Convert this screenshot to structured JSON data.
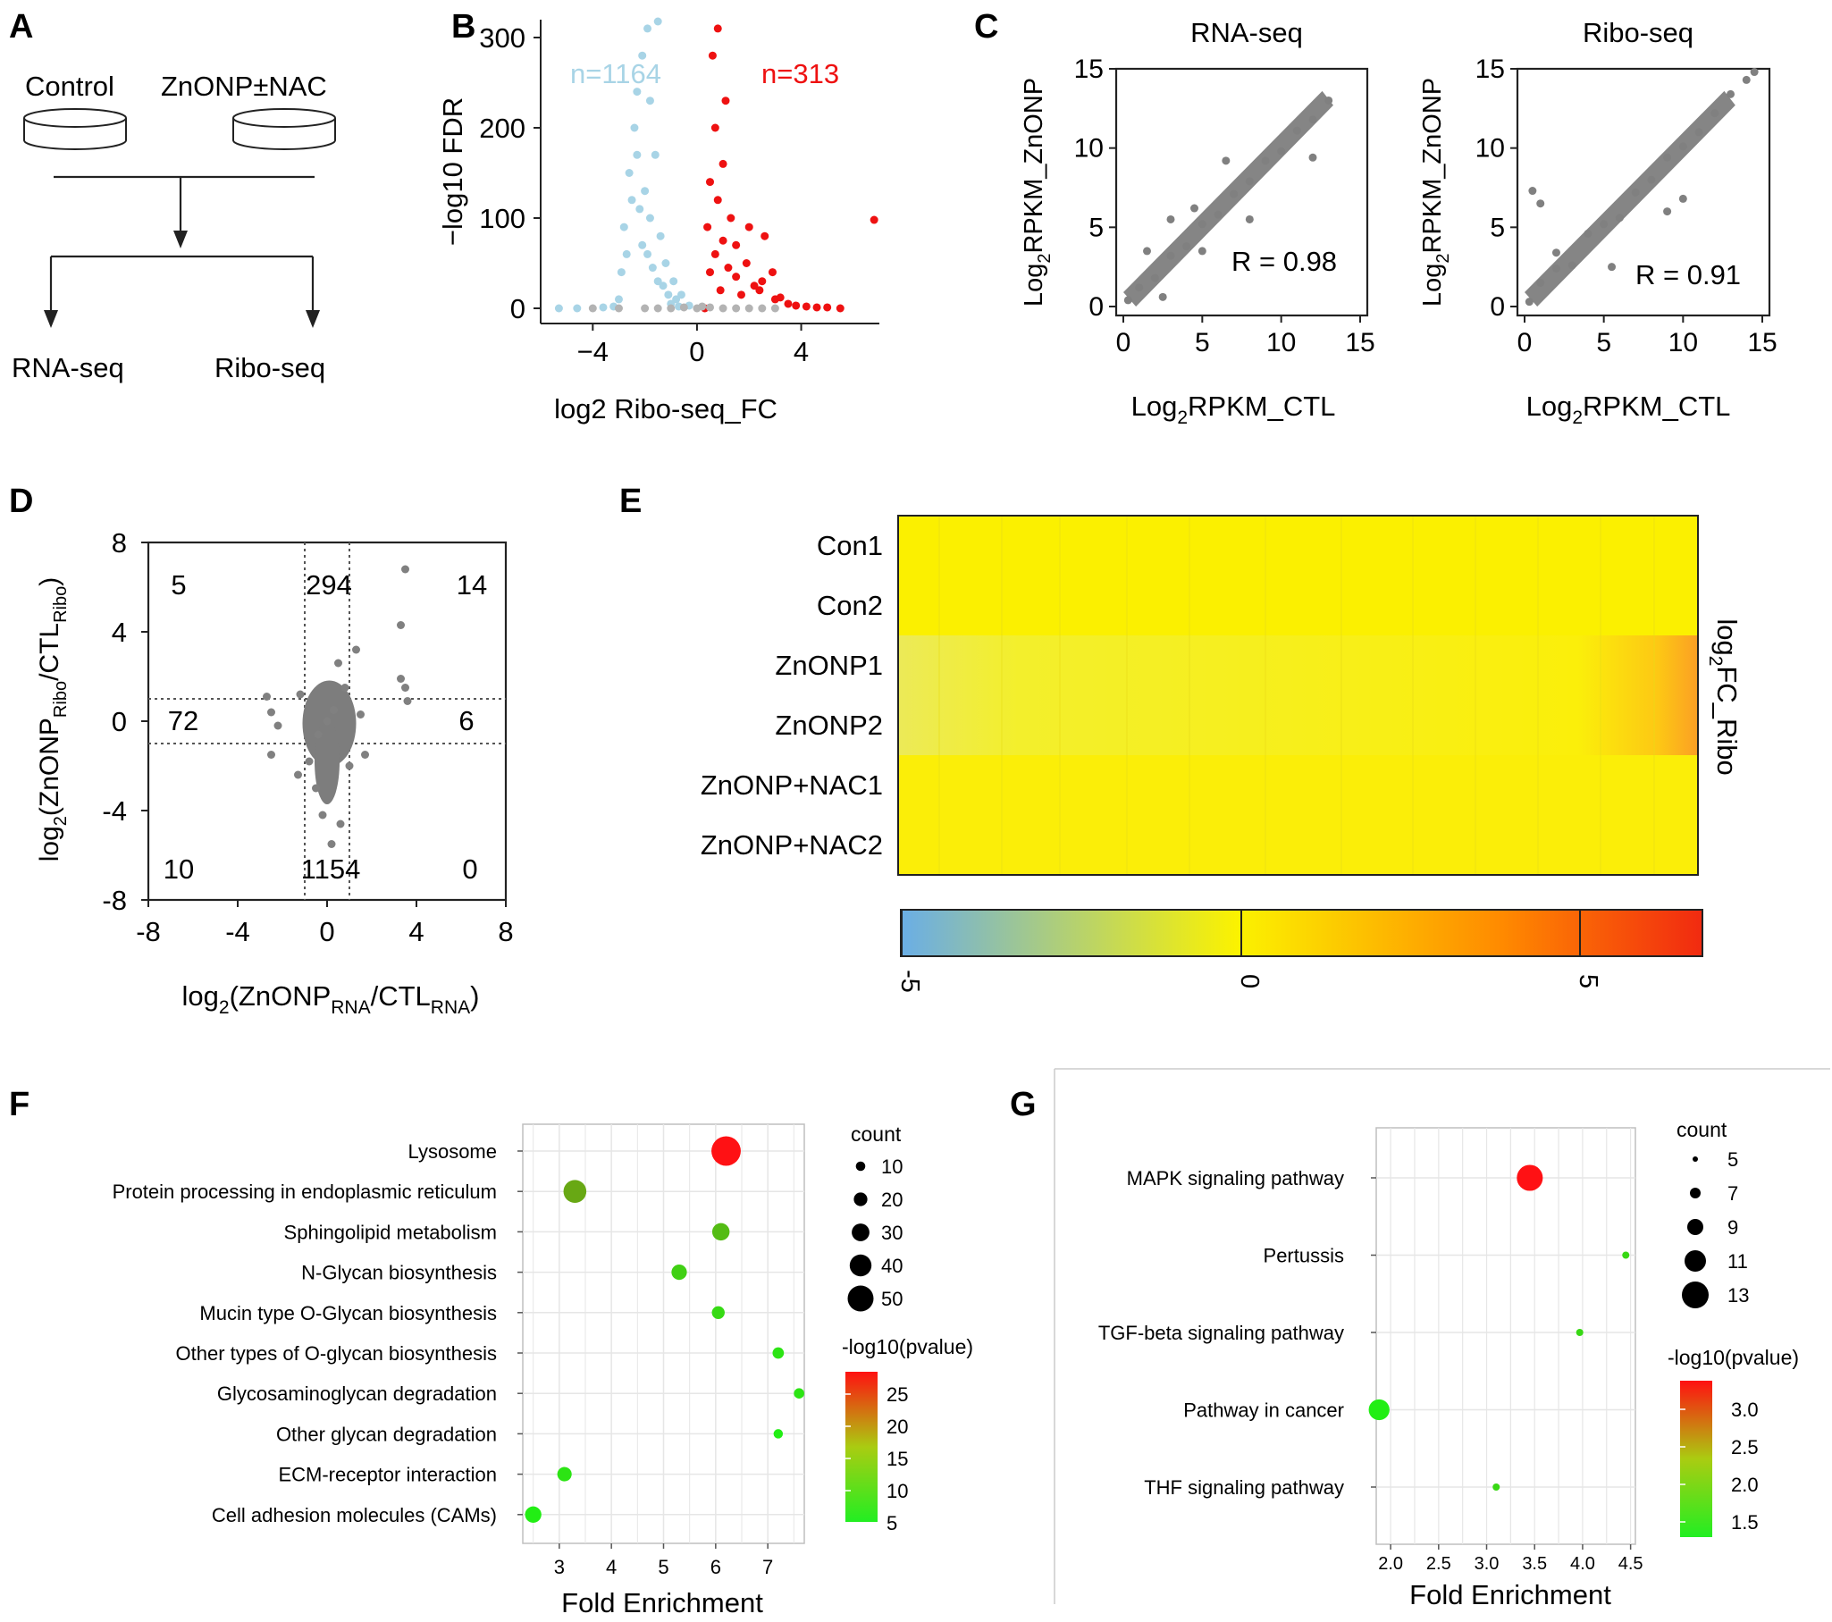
{
  "panels": {
    "A": {
      "letter": "A",
      "control": "Control",
      "treatment": "ZnONP±NAC",
      "rna_seq": "RNA-seq",
      "ribo_seq": "Ribo-seq"
    },
    "B": {
      "letter": "B",
      "xlabel": "log2 Ribo-seq_FC",
      "ylabel": "−log10 FDR",
      "n_down": "n=1164",
      "n_up": "n=313",
      "xticks": [
        "−4",
        "0",
        "4"
      ],
      "yticks": [
        "0",
        "100",
        "200",
        "300"
      ]
    },
    "C": {
      "letter": "C",
      "rna_title": "RNA-seq",
      "ribo_title": "Ribo-seq",
      "ylabel_main": "Log",
      "ylabel_sub": "2",
      "ylabel_rest": "RPKM_ZnONP",
      "xlabel_main": "Log",
      "xlabel_sub": "2",
      "xlabel_rest": "RPKM_CTL",
      "rna_r": "R = 0.98",
      "ribo_r": "R = 0.91",
      "ticks": [
        "0",
        "5",
        "10",
        "15"
      ]
    },
    "D": {
      "letter": "D",
      "xlabel": {
        "a": "log",
        "b": "2",
        "c": "(ZnONP",
        "d": "RNA",
        "e": "/CTL",
        "f": "RNA",
        "g": ")"
      },
      "ylabel": {
        "a": "log",
        "b": "2",
        "c": "(ZnONP",
        "d": "Ribo",
        "e": "/CTL",
        "f": "Ribo",
        "g": ")"
      },
      "counts": [
        "5",
        "294",
        "14",
        "72",
        "6",
        "10",
        "1154",
        "0"
      ],
      "xticks": [
        "-8",
        "-4",
        "0",
        "4",
        "8"
      ],
      "yticks": [
        "8",
        "4",
        "0",
        "-4",
        "-8"
      ]
    },
    "E": {
      "letter": "E",
      "rows": [
        "Con1",
        "Con2",
        "ZnONP1",
        "ZnONP2",
        "ZnONP+NAC1",
        "ZnONP+NAC2"
      ],
      "side_label_a": "log",
      "side_label_b": "2",
      "side_label_c": "FC_Ribo",
      "colorbar_ticks": [
        "-5",
        "0",
        "5"
      ]
    },
    "F": {
      "letter": "F",
      "xlabel": "Fold Enrichment",
      "count_title": "count",
      "pvalue_title": "-log10(pvalue)",
      "count_legend": [
        "10",
        "20",
        "30",
        "40",
        "50"
      ],
      "pvalue_legend": [
        "25",
        "20",
        "15",
        "10",
        "5"
      ],
      "xticks": [
        "3",
        "4",
        "5",
        "6",
        "7"
      ]
    },
    "G": {
      "letter": "G",
      "xlabel": "Fold Enrichment",
      "count_title": "count",
      "pvalue_title": "-log10(pvalue)",
      "count_legend": [
        "5",
        "7",
        "9",
        "11",
        "13"
      ],
      "pvalue_legend": [
        "3.0",
        "2.5",
        "2.0",
        "1.5"
      ],
      "xticks": [
        "2.0",
        "2.5",
        "3.0",
        "3.5",
        "4.0",
        "4.5"
      ]
    }
  },
  "chart_data": [
    {
      "panel": "B",
      "type": "scatter",
      "xlabel": "log2 Ribo-seq_FC",
      "ylabel": "−log10 FDR",
      "xlim": [
        -6,
        7
      ],
      "ylim": [
        0,
        320
      ],
      "series": [
        {
          "name": "n=1164",
          "color": "#a8d4e6",
          "points": [
            [
              -5.3,
              0
            ],
            [
              -4.6,
              0
            ],
            [
              -3.6,
              1
            ],
            [
              -3.2,
              2
            ],
            [
              -3,
              10
            ],
            [
              -2.9,
              40
            ],
            [
              -2.8,
              90
            ],
            [
              -2.7,
              60
            ],
            [
              -2.6,
              150
            ],
            [
              -2.5,
              120
            ],
            [
              -2.4,
              200
            ],
            [
              -2.3,
              240
            ],
            [
              -2.3,
              170
            ],
            [
              -2.2,
              110
            ],
            [
              -2.1,
              280
            ],
            [
              -2.1,
              70
            ],
            [
              -2,
              130
            ],
            [
              -1.9,
              60
            ],
            [
              -1.9,
              310
            ],
            [
              -1.8,
              100
            ],
            [
              -1.8,
              230
            ],
            [
              -1.7,
              45
            ],
            [
              -1.6,
              170
            ],
            [
              -1.5,
              30
            ],
            [
              -1.5,
              320
            ],
            [
              -1.4,
              80
            ],
            [
              -1.3,
              25
            ],
            [
              -1.2,
              50
            ],
            [
              -1.1,
              15
            ],
            [
              -1,
              5
            ],
            [
              -0.9,
              30
            ],
            [
              -0.8,
              10
            ],
            [
              -0.7,
              2
            ],
            [
              -0.6,
              15
            ],
            [
              -0.3,
              3
            ]
          ]
        },
        {
          "name": "n=313",
          "color": "#ee1111",
          "points": [
            [
              0.3,
              0
            ],
            [
              0.4,
              90
            ],
            [
              0.5,
              140
            ],
            [
              0.5,
              40
            ],
            [
              0.6,
              280
            ],
            [
              0.7,
              200
            ],
            [
              0.7,
              60
            ],
            [
              0.8,
              310
            ],
            [
              0.8,
              120
            ],
            [
              0.9,
              20
            ],
            [
              1,
              160
            ],
            [
              1,
              75
            ],
            [
              1.1,
              230
            ],
            [
              1.2,
              45
            ],
            [
              1.3,
              100
            ],
            [
              1.5,
              35
            ],
            [
              1.5,
              70
            ],
            [
              1.7,
              15
            ],
            [
              1.9,
              50
            ],
            [
              2,
              90
            ],
            [
              2.2,
              25
            ],
            [
              2.4,
              20
            ],
            [
              2.5,
              30
            ],
            [
              2.6,
              80
            ],
            [
              2.9,
              40
            ],
            [
              3,
              10
            ],
            [
              3.2,
              12
            ],
            [
              3.5,
              5
            ],
            [
              3.8,
              3
            ],
            [
              4.2,
              2
            ],
            [
              4.6,
              1
            ],
            [
              5,
              1
            ],
            [
              5.5,
              0
            ],
            [
              6.8,
              98
            ]
          ]
        },
        {
          "name": "",
          "color": "#b3b3b3",
          "points": [
            [
              -4,
              0
            ],
            [
              -3,
              0
            ],
            [
              -2,
              0
            ],
            [
              -1,
              0
            ],
            [
              0,
              0
            ],
            [
              1,
              0
            ],
            [
              2,
              0
            ],
            [
              3,
              0
            ],
            [
              -0.5,
              1
            ],
            [
              0.5,
              1
            ],
            [
              1.5,
              0
            ],
            [
              -1.5,
              0
            ],
            [
              2.5,
              0
            ],
            [
              0.2,
              2
            ]
          ]
        }
      ]
    },
    {
      "panel": "C-left",
      "type": "scatter",
      "title": "RNA-seq",
      "xlim": [
        0,
        15
      ],
      "ylim": [
        0,
        15
      ],
      "r": 0.98,
      "series": [
        {
          "color": "#808080",
          "points": [
            [
              0.3,
              0.4
            ],
            [
              1,
              1.2
            ],
            [
              2,
              1.8
            ],
            [
              3,
              3.2
            ],
            [
              4,
              3.8
            ],
            [
              5,
              5.2
            ],
            [
              6,
              5.8
            ],
            [
              7,
              7.1
            ],
            [
              8,
              7.9
            ],
            [
              9,
              9.2
            ],
            [
              10,
              9.8
            ],
            [
              11,
              11.1
            ],
            [
              12,
              11.8
            ],
            [
              13,
              13
            ],
            [
              1.5,
              3.5
            ],
            [
              3,
              5.5
            ],
            [
              6.5,
              9.2
            ],
            [
              8,
              5.5
            ],
            [
              12,
              9.4
            ],
            [
              2.5,
              0.6
            ],
            [
              5,
              3.5
            ],
            [
              4.5,
              6.2
            ]
          ]
        }
      ]
    },
    {
      "panel": "C-right",
      "type": "scatter",
      "title": "Ribo-seq",
      "xlim": [
        0,
        15
      ],
      "ylim": [
        0,
        15
      ],
      "r": 0.91,
      "series": [
        {
          "color": "#808080",
          "points": [
            [
              0.3,
              0.3
            ],
            [
              1,
              1.5
            ],
            [
              2,
              2.4
            ],
            [
              3,
              2.6
            ],
            [
              4,
              4.6
            ],
            [
              5,
              5.2
            ],
            [
              6,
              5.6
            ],
            [
              7,
              7.2
            ],
            [
              8,
              8
            ],
            [
              9,
              9.4
            ],
            [
              10,
              10.1
            ],
            [
              11,
              11
            ],
            [
              12,
              12.2
            ],
            [
              13,
              13.4
            ],
            [
              14,
              14.3
            ],
            [
              14.5,
              14.8
            ],
            [
              0.5,
              7.3
            ],
            [
              1,
              6.5
            ],
            [
              2,
              3.4
            ],
            [
              5.5,
              2.5
            ],
            [
              9,
              6
            ],
            [
              10,
              6.8
            ]
          ]
        }
      ]
    },
    {
      "panel": "D",
      "type": "scatter",
      "xlim": [
        -8,
        8
      ],
      "ylim": [
        -8,
        8
      ],
      "thresholds": {
        "x": [
          -1,
          1
        ],
        "y": [
          -1,
          1
        ]
      },
      "quadrant_counts": {
        "top_left": 5,
        "top_mid": 294,
        "top_right": 14,
        "mid_left": 72,
        "mid_right": 6,
        "bottom_left": 10,
        "bottom_mid": 1154,
        "bottom_right": 0
      },
      "series": [
        {
          "color": "#808080",
          "points": [
            [
              0,
              0
            ],
            [
              0.3,
              0.5
            ],
            [
              -0.4,
              -0.6
            ],
            [
              0.8,
              1.5
            ],
            [
              -0.8,
              -1.8
            ],
            [
              0.5,
              2.6
            ],
            [
              -0.5,
              -3
            ],
            [
              1,
              -2
            ],
            [
              -1.2,
              1.2
            ],
            [
              1.5,
              0.3
            ],
            [
              -2.5,
              0.4
            ],
            [
              -2.7,
              1.1
            ],
            [
              -2.2,
              -0.2
            ],
            [
              -2.5,
              -1.5
            ],
            [
              1.7,
              -1.5
            ],
            [
              3.5,
              6.8
            ],
            [
              3.3,
              4.3
            ],
            [
              3.5,
              1.5
            ],
            [
              3.3,
              1.9
            ],
            [
              3.6,
              0.9
            ],
            [
              1.3,
              3.2
            ],
            [
              -0.2,
              -4.2
            ],
            [
              0.2,
              -5.5
            ],
            [
              -1.3,
              -2.4
            ],
            [
              0.6,
              -4.6
            ]
          ]
        }
      ]
    },
    {
      "panel": "E",
      "type": "heatmap",
      "rows": [
        "Con1",
        "Con2",
        "ZnONP1",
        "ZnONP2",
        "ZnONP+NAC1",
        "ZnONP+NAC2"
      ],
      "colorbar_range": [
        -5,
        6.8
      ]
    },
    {
      "panel": "F",
      "type": "scatter",
      "xlabel": "Fold Enrichment",
      "xlim": [
        2.3,
        7.7
      ],
      "categories": [
        "Lysosome",
        "Protein processing in endoplasmic reticulum",
        "Sphingolipid metabolism",
        "N-Glycan biosynthesis",
        "Mucin type O-Glycan biosynthesis",
        "Other types of O-glycan biosynthesis",
        "Glycosaminoglycan degradation",
        "Other glycan degradation",
        "ECM-receptor interaction",
        "Cell adhesion molecules (CAMs)"
      ],
      "fold_enrichment": [
        6.2,
        3.3,
        6.1,
        5.3,
        6.05,
        7.2,
        7.6,
        7.2,
        3.1,
        2.5
      ],
      "count": [
        48,
        35,
        24,
        20,
        15,
        12,
        10,
        8,
        18,
        22
      ],
      "neg_log10_pvalue": [
        27,
        12,
        10,
        8,
        7,
        6,
        6,
        5,
        6,
        5
      ],
      "color_scale": {
        "low": "#22ee22",
        "high": "#ff1111",
        "range": [
          5,
          27
        ]
      }
    },
    {
      "panel": "G",
      "type": "scatter",
      "xlabel": "Fold Enrichment",
      "xlim": [
        1.85,
        4.55
      ],
      "categories": [
        "MAPK signaling pathway",
        "Pertussis",
        "TGF-beta signaling pathway",
        "Pathway in cancer",
        "THF signaling pathway"
      ],
      "fold_enrichment": [
        3.45,
        4.45,
        3.97,
        1.88,
        3.1
      ],
      "count": [
        13,
        4,
        4,
        11,
        4
      ],
      "neg_log10_pvalue": [
        3.3,
        1.5,
        1.5,
        1.3,
        1.5
      ],
      "color_scale": {
        "low": "#22ee22",
        "high": "#ff1111",
        "range": [
          1.3,
          3.3
        ]
      }
    }
  ]
}
